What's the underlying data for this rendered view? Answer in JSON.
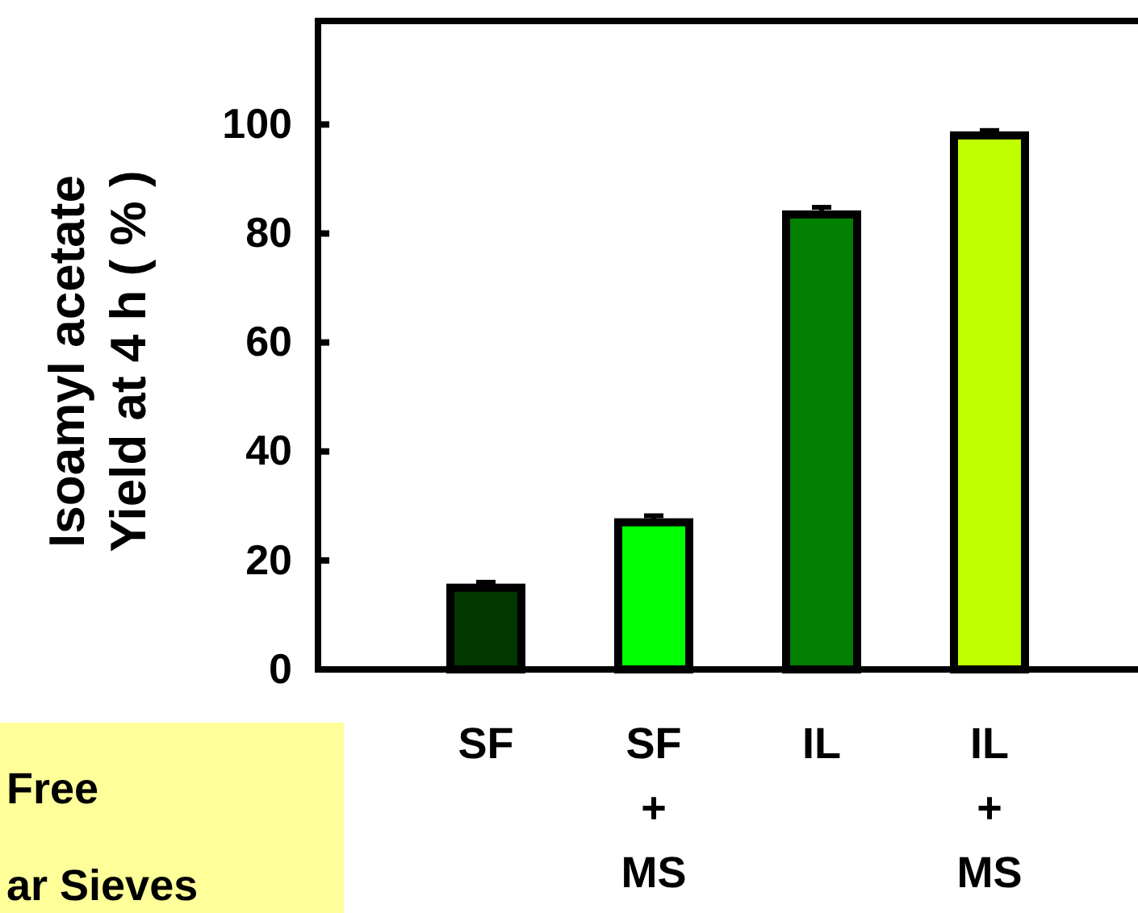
{
  "chart_data": {
    "type": "bar",
    "ylabel": "Isoamyl acetate\nYield at 4 h ( % )",
    "categories": [
      "SF",
      "SF\n+\nMS",
      "IL",
      "IL\n+\nMS"
    ],
    "values": [
      15,
      27,
      83.5,
      98
    ],
    "colors": [
      "#003800",
      "#00ff00",
      "#007f00",
      "#c0ff00"
    ],
    "errors": [
      1,
      1.2,
      1.3,
      0.9
    ],
    "ylim": [
      0,
      119
    ],
    "yticks": [
      0,
      20,
      40,
      60,
      80,
      100
    ],
    "annotations": [
      "Free",
      "ar Sieves"
    ]
  }
}
